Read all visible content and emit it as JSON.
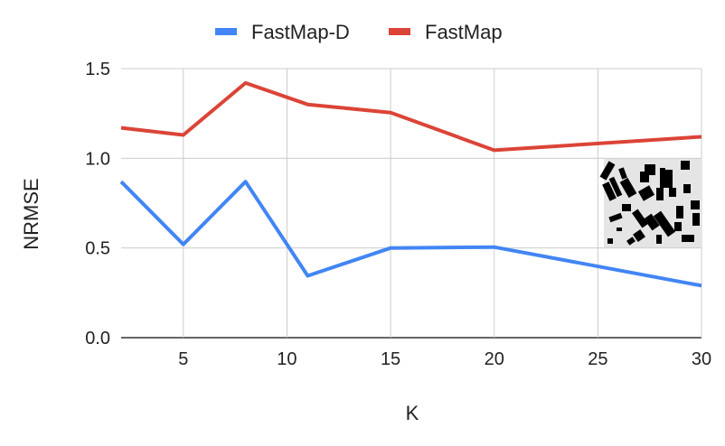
{
  "chart_data": {
    "type": "line",
    "x": [
      2,
      5,
      8,
      11,
      15,
      20,
      30
    ],
    "series": [
      {
        "name": "FastMap-D",
        "color": "#4285f4",
        "values": [
          0.87,
          0.52,
          0.87,
          0.345,
          0.5,
          0.505,
          0.29
        ]
      },
      {
        "name": "FastMap",
        "color": "#db4437",
        "values": [
          1.17,
          1.13,
          1.42,
          1.3,
          1.255,
          1.045,
          1.12
        ]
      }
    ],
    "xlabel": "K",
    "ylabel": "NRMSE",
    "xlim": [
      2,
      30
    ],
    "ylim": [
      0,
      1.5
    ],
    "xticks": [
      5,
      10,
      15,
      20,
      25,
      30
    ],
    "yticks": [
      0.0,
      0.5,
      1.0,
      1.5
    ],
    "xtick_labels": [
      "5",
      "10",
      "15",
      "20",
      "25",
      "30"
    ],
    "ytick_labels": [
      "0.0",
      "0.5",
      "1.0",
      "1.5"
    ],
    "grid": true,
    "legend_position": "top-center",
    "inset": {
      "type": "map-image",
      "description_icon": "building-footprint-map-icon"
    }
  }
}
